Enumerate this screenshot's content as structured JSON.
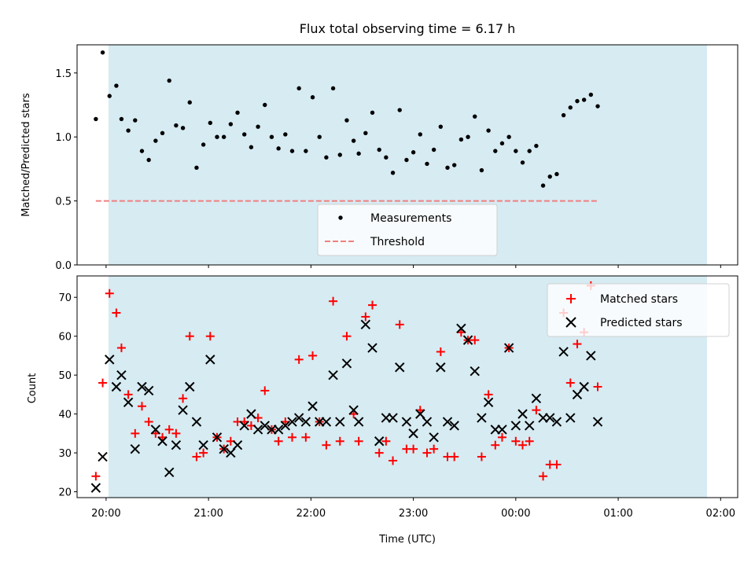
{
  "chart_data": [
    {
      "type": "scatter",
      "title": "Flux total observing time = 6.17 h",
      "ylabel": "Matched/Predicted stars",
      "xlabel": "",
      "ylim": [
        0.0,
        1.72
      ],
      "y_ticks": [
        0.0,
        0.5,
        1.0,
        1.5
      ],
      "y_tick_labels": [
        "0.0",
        "0.5",
        "1.0",
        "1.5"
      ],
      "shaded_span_color": "#add8e6",
      "threshold": {
        "name": "Threshold",
        "value": 0.5,
        "color": "#f08080",
        "style": "dashed"
      },
      "legend": {
        "placement": "lower center",
        "entries": [
          "Measurements",
          "Threshold"
        ]
      },
      "series": [
        {
          "name": "Measurements",
          "color": "#000000",
          "marker": "dot",
          "points": [
            [
              "19:54",
              1.14
            ],
            [
              "19:58",
              1.66
            ],
            [
              "20:02",
              1.32
            ],
            [
              "20:06",
              1.4
            ],
            [
              "20:09",
              1.14
            ],
            [
              "20:13",
              1.05
            ],
            [
              "20:17",
              1.13
            ],
            [
              "20:21",
              0.89
            ],
            [
              "20:25",
              0.82
            ],
            [
              "20:29",
              0.97
            ],
            [
              "20:33",
              1.03
            ],
            [
              "20:37",
              1.44
            ],
            [
              "20:41",
              1.09
            ],
            [
              "20:45",
              1.07
            ],
            [
              "20:49",
              1.27
            ],
            [
              "20:53",
              0.76
            ],
            [
              "20:57",
              0.94
            ],
            [
              "21:01",
              1.11
            ],
            [
              "21:05",
              1.0
            ],
            [
              "21:09",
              1.0
            ],
            [
              "21:13",
              1.1
            ],
            [
              "21:17",
              1.19
            ],
            [
              "21:21",
              1.02
            ],
            [
              "21:25",
              0.92
            ],
            [
              "21:29",
              1.08
            ],
            [
              "21:33",
              1.25
            ],
            [
              "21:37",
              1.0
            ],
            [
              "21:41",
              0.91
            ],
            [
              "21:45",
              1.02
            ],
            [
              "21:49",
              0.89
            ],
            [
              "21:53",
              1.38
            ],
            [
              "21:57",
              0.89
            ],
            [
              "22:01",
              1.31
            ],
            [
              "22:05",
              1.0
            ],
            [
              "22:09",
              0.84
            ],
            [
              "22:13",
              1.38
            ],
            [
              "22:17",
              0.86
            ],
            [
              "22:21",
              1.13
            ],
            [
              "22:25",
              0.97
            ],
            [
              "22:28",
              0.87
            ],
            [
              "22:32",
              1.03
            ],
            [
              "22:36",
              1.19
            ],
            [
              "22:40",
              0.9
            ],
            [
              "22:44",
              0.84
            ],
            [
              "22:48",
              0.72
            ],
            [
              "22:52",
              1.21
            ],
            [
              "22:56",
              0.82
            ],
            [
              "23:00",
              0.88
            ],
            [
              "23:04",
              1.02
            ],
            [
              "23:08",
              0.79
            ],
            [
              "23:12",
              0.9
            ],
            [
              "23:16",
              1.08
            ],
            [
              "23:20",
              0.76
            ],
            [
              "23:24",
              0.78
            ],
            [
              "23:28",
              0.98
            ],
            [
              "23:32",
              1.0
            ],
            [
              "23:36",
              1.16
            ],
            [
              "23:40",
              0.74
            ],
            [
              "23:44",
              1.05
            ],
            [
              "23:48",
              0.89
            ],
            [
              "23:52",
              0.95
            ],
            [
              "23:56",
              1.0
            ],
            [
              "00:00",
              0.89
            ],
            [
              "00:04",
              0.8
            ],
            [
              "00:08",
              0.89
            ],
            [
              "00:12",
              0.93
            ],
            [
              "00:16",
              0.62
            ],
            [
              "00:20",
              0.69
            ],
            [
              "00:24",
              0.71
            ],
            [
              "00:28",
              1.17
            ],
            [
              "00:32",
              1.23
            ],
            [
              "00:36",
              1.28
            ],
            [
              "00:40",
              1.29
            ],
            [
              "00:44",
              1.33
            ],
            [
              "00:48",
              1.24
            ]
          ]
        }
      ]
    },
    {
      "type": "scatter",
      "title": "",
      "ylabel": "Count",
      "xlabel": "Time (UTC)",
      "ylim": [
        18.5,
        75.5
      ],
      "y_ticks": [
        20,
        30,
        40,
        50,
        60,
        70
      ],
      "y_tick_labels": [
        "20",
        "30",
        "40",
        "50",
        "60",
        "70"
      ],
      "x_tick_labels": [
        "20:00",
        "21:00",
        "22:00",
        "23:00",
        "00:00",
        "01:00",
        "02:00"
      ],
      "shaded_span_color": "#add8e6",
      "legend": {
        "placement": "upper right",
        "entries": [
          "Matched stars",
          "Predicted stars"
        ]
      },
      "series": [
        {
          "name": "Matched stars",
          "color": "#ff0000",
          "marker": "plus",
          "points": [
            [
              "19:54",
              24
            ],
            [
              "19:58",
              48
            ],
            [
              "20:02",
              71
            ],
            [
              "20:06",
              66
            ],
            [
              "20:09",
              57
            ],
            [
              "20:13",
              45
            ],
            [
              "20:17",
              35
            ],
            [
              "20:21",
              42
            ],
            [
              "20:25",
              38
            ],
            [
              "20:29",
              35
            ],
            [
              "20:33",
              34
            ],
            [
              "20:37",
              36
            ],
            [
              "20:41",
              35
            ],
            [
              "20:45",
              44
            ],
            [
              "20:49",
              60
            ],
            [
              "20:53",
              29
            ],
            [
              "20:57",
              30
            ],
            [
              "21:01",
              60
            ],
            [
              "21:05",
              34
            ],
            [
              "21:09",
              31
            ],
            [
              "21:13",
              33
            ],
            [
              "21:17",
              38
            ],
            [
              "21:21",
              38
            ],
            [
              "21:25",
              37
            ],
            [
              "21:29",
              39
            ],
            [
              "21:33",
              46
            ],
            [
              "21:37",
              36
            ],
            [
              "21:41",
              33
            ],
            [
              "21:45",
              38
            ],
            [
              "21:49",
              34
            ],
            [
              "21:53",
              54
            ],
            [
              "21:57",
              34
            ],
            [
              "22:01",
              55
            ],
            [
              "22:05",
              38
            ],
            [
              "22:09",
              32
            ],
            [
              "22:13",
              69
            ],
            [
              "22:17",
              33
            ],
            [
              "22:21",
              60
            ],
            [
              "22:25",
              40
            ],
            [
              "22:28",
              33
            ],
            [
              "22:32",
              65
            ],
            [
              "22:36",
              68
            ],
            [
              "22:40",
              30
            ],
            [
              "22:44",
              33
            ],
            [
              "22:48",
              28
            ],
            [
              "22:52",
              63
            ],
            [
              "22:56",
              31
            ],
            [
              "23:00",
              31
            ],
            [
              "23:04",
              41
            ],
            [
              "23:08",
              30
            ],
            [
              "23:12",
              31
            ],
            [
              "23:16",
              56
            ],
            [
              "23:20",
              29
            ],
            [
              "23:24",
              29
            ],
            [
              "23:28",
              61
            ],
            [
              "23:32",
              59
            ],
            [
              "23:36",
              59
            ],
            [
              "23:40",
              29
            ],
            [
              "23:44",
              45
            ],
            [
              "23:48",
              32
            ],
            [
              "23:52",
              34
            ],
            [
              "23:56",
              57
            ],
            [
              "00:00",
              33
            ],
            [
              "00:04",
              32
            ],
            [
              "00:08",
              33
            ],
            [
              "00:12",
              41
            ],
            [
              "00:16",
              24
            ],
            [
              "00:20",
              27
            ],
            [
              "00:24",
              27
            ],
            [
              "00:28",
              66
            ],
            [
              "00:32",
              48
            ],
            [
              "00:36",
              58
            ],
            [
              "00:40",
              61
            ],
            [
              "00:44",
              73
            ],
            [
              "00:48",
              47
            ]
          ]
        },
        {
          "name": "Predicted stars",
          "color": "#000000",
          "marker": "x",
          "points": [
            [
              "19:54",
              21
            ],
            [
              "19:58",
              29
            ],
            [
              "20:02",
              54
            ],
            [
              "20:06",
              47
            ],
            [
              "20:09",
              50
            ],
            [
              "20:13",
              43
            ],
            [
              "20:17",
              31
            ],
            [
              "20:21",
              47
            ],
            [
              "20:25",
              46
            ],
            [
              "20:29",
              36
            ],
            [
              "20:33",
              33
            ],
            [
              "20:37",
              25
            ],
            [
              "20:41",
              32
            ],
            [
              "20:45",
              41
            ],
            [
              "20:49",
              47
            ],
            [
              "20:53",
              38
            ],
            [
              "20:57",
              32
            ],
            [
              "21:01",
              54
            ],
            [
              "21:05",
              34
            ],
            [
              "21:09",
              31
            ],
            [
              "21:13",
              30
            ],
            [
              "21:17",
              32
            ],
            [
              "21:21",
              37
            ],
            [
              "21:25",
              40
            ],
            [
              "21:29",
              36
            ],
            [
              "21:33",
              37
            ],
            [
              "21:37",
              36
            ],
            [
              "21:41",
              36
            ],
            [
              "21:45",
              37
            ],
            [
              "21:49",
              38
            ],
            [
              "21:53",
              39
            ],
            [
              "21:57",
              38
            ],
            [
              "22:01",
              42
            ],
            [
              "22:05",
              38
            ],
            [
              "22:09",
              38
            ],
            [
              "22:13",
              50
            ],
            [
              "22:17",
              38
            ],
            [
              "22:21",
              53
            ],
            [
              "22:25",
              41
            ],
            [
              "22:28",
              38
            ],
            [
              "22:32",
              63
            ],
            [
              "22:36",
              57
            ],
            [
              "22:40",
              33
            ],
            [
              "22:44",
              39
            ],
            [
              "22:48",
              39
            ],
            [
              "22:52",
              52
            ],
            [
              "22:56",
              38
            ],
            [
              "23:00",
              35
            ],
            [
              "23:04",
              40
            ],
            [
              "23:08",
              38
            ],
            [
              "23:12",
              34
            ],
            [
              "23:16",
              52
            ],
            [
              "23:20",
              38
            ],
            [
              "23:24",
              37
            ],
            [
              "23:28",
              62
            ],
            [
              "23:32",
              59
            ],
            [
              "23:36",
              51
            ],
            [
              "23:40",
              39
            ],
            [
              "23:44",
              43
            ],
            [
              "23:48",
              36
            ],
            [
              "23:52",
              36
            ],
            [
              "23:56",
              57
            ],
            [
              "00:00",
              37
            ],
            [
              "00:04",
              40
            ],
            [
              "00:08",
              37
            ],
            [
              "00:12",
              44
            ],
            [
              "00:16",
              39
            ],
            [
              "00:20",
              39
            ],
            [
              "00:24",
              38
            ],
            [
              "00:28",
              56
            ],
            [
              "00:32",
              39
            ],
            [
              "00:36",
              45
            ],
            [
              "00:40",
              47
            ],
            [
              "00:44",
              55
            ],
            [
              "00:48",
              38
            ]
          ]
        }
      ]
    }
  ]
}
